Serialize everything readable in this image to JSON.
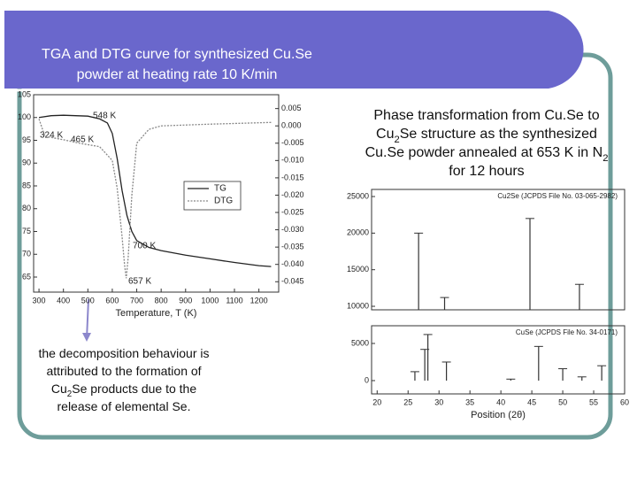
{
  "slide": {
    "title_lines": [
      "TGA and DTG curve for synthesized Cu.Se",
      "powder at heating rate 10 K/min"
    ],
    "caption_lines": [
      [
        "Phase transformation from Cu.Se to"
      ],
      [
        "Cu",
        "2",
        "Se structure as the synthesized"
      ],
      [
        "Cu.Se powder annealed at 653 K in N",
        "2"
      ],
      [
        "for 12 hours"
      ]
    ],
    "note_lines": [
      [
        "the decomposition behaviour is"
      ],
      [
        "attributed to the formation of"
      ],
      [
        "Cu",
        "2",
        "Se products due to the"
      ],
      [
        "release of elemental Se."
      ]
    ]
  },
  "chart_data": [
    {
      "type": "line",
      "xlabel": "Temperature, T (K)",
      "xlim": [
        278,
        1281
      ],
      "xticks": [
        300,
        400,
        500,
        600,
        700,
        800,
        900,
        1000,
        1100,
        1200
      ],
      "ylim": [
        61.7,
        105
      ],
      "yticks": [
        65,
        70,
        75,
        80,
        85,
        90,
        95,
        100,
        105
      ],
      "y2lim": [
        -0.048,
        0.009
      ],
      "y2ticks": [
        0.005,
        {
          "value": 0,
          "label": "0.000"
        },
        -0.005,
        {
          "value": -0.01,
          "label": "-0.010"
        },
        -0.015,
        {
          "value": -0.02,
          "label": "-0.020"
        },
        -0.025,
        {
          "value": -0.03,
          "label": "-0.030"
        },
        -0.035,
        {
          "value": -0.04,
          "label": "-0.040"
        },
        -0.045
      ],
      "annotations": [
        "548 K",
        "324 K",
        "465 K",
        "700 K",
        "657 K"
      ],
      "series": [
        {
          "name": "TG",
          "color": "#222222",
          "x": [
            300,
            350,
            400,
            500,
            548,
            580,
            600,
            620,
            640,
            660,
            680,
            700,
            750,
            800,
            900,
            1000,
            1100,
            1200,
            1250
          ],
          "values": [
            100,
            100.4,
            100.5,
            100.3,
            99.7,
            98.8,
            96.5,
            91,
            84,
            78.5,
            75,
            73,
            71.5,
            70.8,
            69.8,
            69,
            68.2,
            67.5,
            67.3
          ]
        },
        {
          "name": "DTG",
          "color": "#888888",
          "axis": "y2",
          "x": [
            300,
            324,
            400,
            465,
            548,
            600,
            620,
            640,
            650,
            657,
            665,
            680,
            700,
            750,
            800,
            1000,
            1250
          ],
          "values": [
            0.002,
            -0.003,
            -0.004,
            -0.005,
            -0.006,
            -0.01,
            -0.018,
            -0.032,
            -0.04,
            -0.044,
            -0.038,
            -0.02,
            -0.005,
            -0.001,
            0,
            0.0005,
            0.001
          ]
        }
      ]
    },
    {
      "type": "stem",
      "xlim": [
        19.1,
        60
      ],
      "ylim": [
        9520,
        25970
      ],
      "yticks": [
        10000,
        15000,
        20000,
        25000
      ],
      "series": [
        {
          "name": "Cu2Se (JCPDS File No. 03-065-2982)",
          "color": "#333333",
          "x": [
            26.7,
            30.9,
            44.7,
            52.7
          ],
          "values": [
            20000,
            11200,
            22000,
            13000
          ]
        }
      ]
    },
    {
      "type": "stem",
      "xlabel": "Position (2θ)",
      "xlim": [
        19.1,
        60
      ],
      "ylim": [
        -1790,
        7380
      ],
      "xticks": [
        20,
        25,
        30,
        35,
        40,
        45,
        50,
        55,
        60
      ],
      "yticks": [
        0,
        5000
      ],
      "series": [
        {
          "name": "CuSe (JCPDS File No. 34-0171)",
          "color": "#333333",
          "x": [
            26.1,
            27.7,
            28.2,
            31.2,
            41.6,
            46.1,
            50,
            53.1,
            56.3
          ],
          "values": [
            1200,
            4200,
            6200,
            2500,
            200,
            4600,
            1600,
            500,
            2000
          ]
        }
      ]
    }
  ]
}
